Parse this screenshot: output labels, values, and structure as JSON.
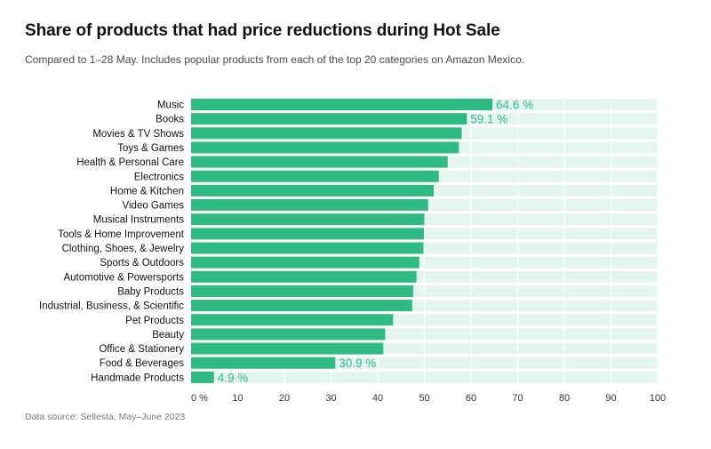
{
  "header": {
    "title": "Share of products that had price reductions during Hot Sale",
    "subtitle": "Compared to 1–28 May. Includes popular products from each of the top 20 categories on Amazon Mexico."
  },
  "footer": {
    "source": "Data source: Sellesta, May–June 2023"
  },
  "colors": {
    "bar": "#2dbb83",
    "track": "#e3f5ee",
    "label_accent": "#2dbb83"
  },
  "chart_data": {
    "type": "bar",
    "orientation": "horizontal",
    "title": "Share of products that had price reductions during Hot Sale",
    "xlabel": "",
    "ylabel": "",
    "xlim": [
      0,
      100
    ],
    "x_ticks": [
      "0 %",
      "10",
      "20",
      "30",
      "40",
      "50",
      "60",
      "70",
      "80",
      "90",
      "100"
    ],
    "categories": [
      "Music",
      "Books",
      "Movies & TV Shows",
      "Toys & Games",
      "Health & Personal Care",
      "Electronics",
      "Home & Kitchen",
      "Video Games",
      "Musical Instruments",
      "Tools & Home Improvement",
      "Clothing, Shoes, & Jewelry",
      "Sports & Outdoors",
      "Automotive & Powersports",
      "Baby Products",
      "Industrial, Business, & Scientific",
      "Pet Products",
      "Beauty",
      "Office & Stationery",
      "Food & Beverages",
      "Handmade Products"
    ],
    "values": [
      64.6,
      59.1,
      58.0,
      57.4,
      55.0,
      53.1,
      52.0,
      50.8,
      50.0,
      49.9,
      49.8,
      48.9,
      48.3,
      47.6,
      47.4,
      43.3,
      41.6,
      41.2,
      30.9,
      4.9
    ],
    "data_labels": {
      "0": "64.6 %",
      "1": "59.1 %",
      "18": "30.9 %",
      "19": "4.9 %"
    },
    "grid": true,
    "legend": "none"
  }
}
